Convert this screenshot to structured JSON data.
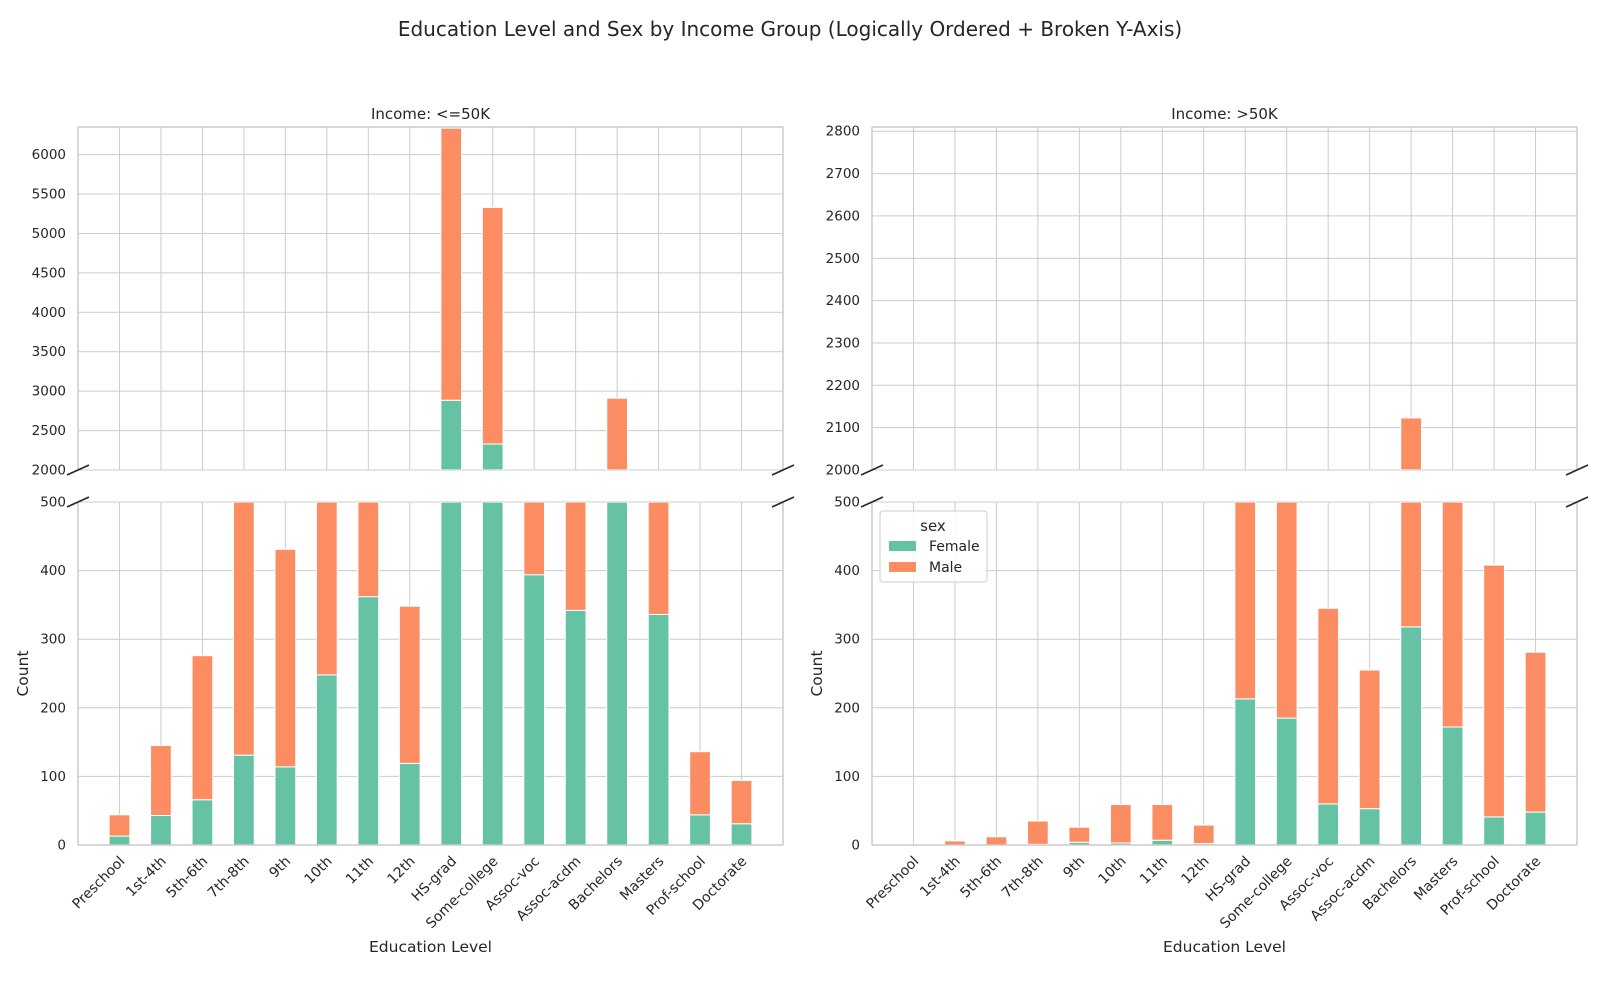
{
  "figure": {
    "title": "Education Level and Sex by Income Group (Logically Ordered + Broken Y-Axis)"
  },
  "colors": {
    "Female": "#66c2a5",
    "Male": "#fc8d62",
    "grid": "#cccccc",
    "spine": "#cccccc",
    "text": "#262626",
    "background": "#ffffff"
  },
  "chart_data": [
    {
      "type": "bar",
      "stacked": true,
      "broken_y_axis": true,
      "title": "Income: <=50K",
      "xlabel": "Education Level",
      "ylabel": "Count",
      "categories": [
        "Preschool",
        "1st-4th",
        "5th-6th",
        "7th-8th",
        "9th",
        "10th",
        "11th",
        "12th",
        "HS-grad",
        "Some-college",
        "Assoc-voc",
        "Assoc-acdm",
        "Bachelors",
        "Masters",
        "Prof-school",
        "Doctorate"
      ],
      "series": [
        {
          "name": "Female",
          "values": [
            13,
            43,
            66,
            131,
            114,
            248,
            362,
            119,
            2885,
            2330,
            394,
            342,
            1940,
            336,
            44,
            31
          ]
        },
        {
          "name": "Male",
          "values": [
            31,
            102,
            210,
            1200,
            317,
            650,
            560,
            229,
            3450,
            3000,
            300,
            900,
            970,
            420,
            92,
            63
          ]
        }
      ],
      "upper_ylim": [
        2000,
        6350
      ],
      "upper_yticks": [
        2000,
        2500,
        3000,
        3500,
        4000,
        4500,
        5000,
        5500,
        6000
      ],
      "lower_ylim": [
        0,
        500
      ],
      "lower_yticks": [
        0,
        100,
        200,
        300,
        400,
        500
      ],
      "grid": true,
      "legend": false
    },
    {
      "type": "bar",
      "stacked": true,
      "broken_y_axis": true,
      "title": "Income: >50K",
      "xlabel": "Education Level",
      "ylabel": "Count",
      "categories": [
        "Preschool",
        "1st-4th",
        "5th-6th",
        "7th-8th",
        "9th",
        "10th",
        "11th",
        "12th",
        "HS-grad",
        "Some-college",
        "Assoc-voc",
        "Assoc-acdm",
        "Bachelors",
        "Masters",
        "Prof-school",
        "Doctorate"
      ],
      "series": [
        {
          "name": "Female",
          "values": [
            0,
            0,
            0,
            1,
            4,
            3,
            7,
            2,
            213,
            185,
            60,
            53,
            318,
            172,
            41,
            48
          ]
        },
        {
          "name": "Male",
          "values": [
            0,
            6,
            12,
            34,
            22,
            56,
            52,
            27,
            1460,
            1200,
            285,
            202,
            1805,
            780,
            367,
            233
          ]
        }
      ],
      "upper_ylim": [
        2000,
        2810
      ],
      "upper_yticks": [
        2000,
        2100,
        2200,
        2300,
        2400,
        2500,
        2600,
        2700,
        2800
      ],
      "lower_ylim": [
        0,
        500
      ],
      "lower_yticks": [
        0,
        100,
        200,
        300,
        400,
        500
      ],
      "grid": true,
      "legend": true,
      "legend_title": "sex",
      "legend_placement": "upper-left"
    }
  ]
}
